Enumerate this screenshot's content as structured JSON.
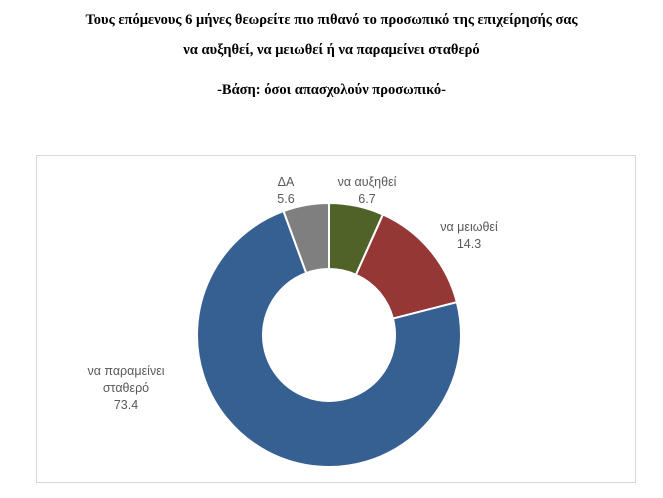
{
  "title_line_1": "Τους επόμενους 6 μήνες θεωρείτε πιο πιθανό το προσωπικό της επιχείρησής σας",
  "title_line_2": "να αυξηθεί, να μειωθεί ή να παραμείνει σταθερό",
  "subtitle": "-Βάση: όσοι απασχολούν προσωπικό-",
  "chart_data": {
    "type": "pie",
    "variant": "doughnut",
    "title": "",
    "categories": [
      "να αυξηθεί",
      "να μειωθεί",
      "να παραμείνει σταθερό",
      "ΔΑ"
    ],
    "values": [
      6.7,
      14.3,
      73.4,
      5.6
    ],
    "colors": [
      "#4f6228",
      "#953735",
      "#376092",
      "#7f7f7f"
    ],
    "legend": "none",
    "data_labels": "outside, category name and value"
  }
}
